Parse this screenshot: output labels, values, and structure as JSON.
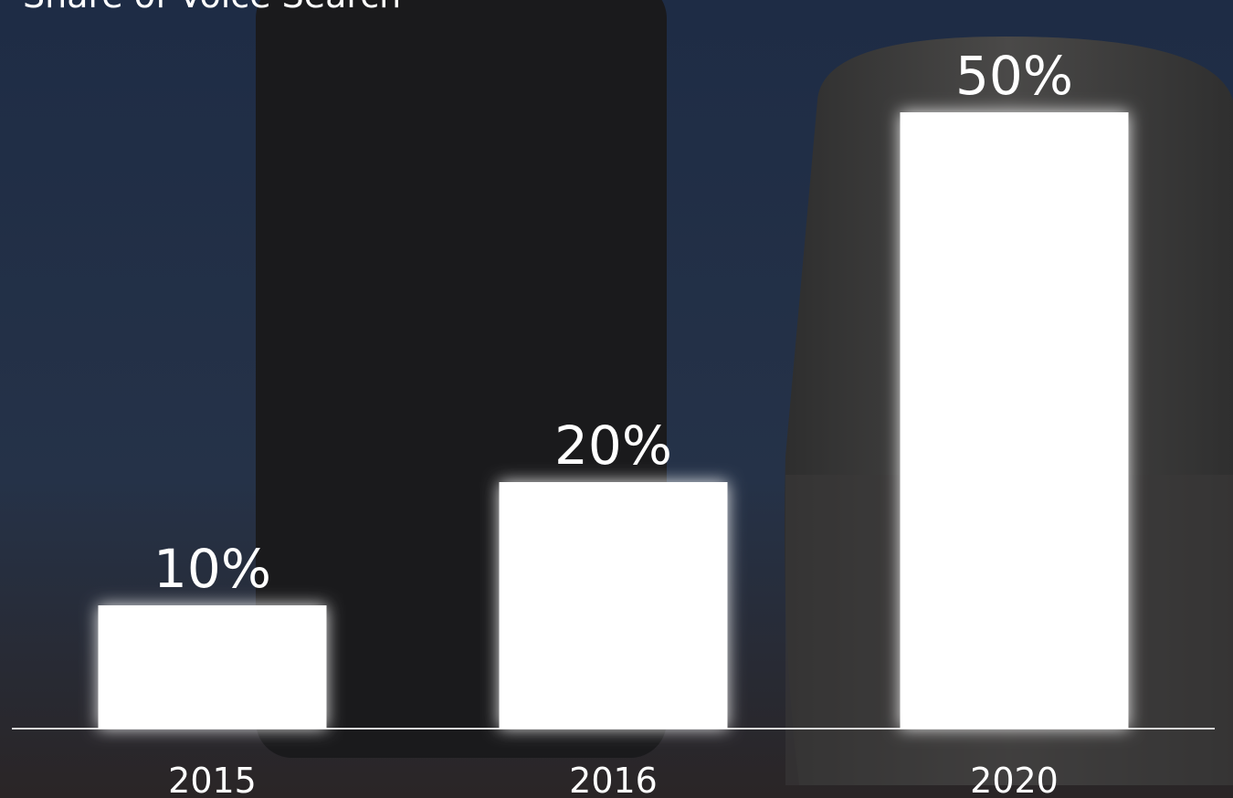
{
  "chart_data": {
    "type": "bar",
    "title": "Share of Voice Search",
    "categories": [
      "2015",
      "2016",
      "2020"
    ],
    "values": [
      10,
      20,
      50
    ],
    "value_labels": [
      "10%",
      "20%",
      "50%"
    ],
    "color": "#ffffff"
  }
}
